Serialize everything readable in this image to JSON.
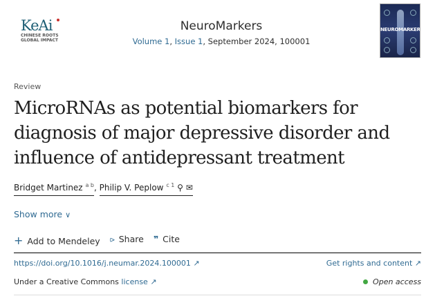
{
  "publisher_logo": {
    "name": "KeAi",
    "tagline_1": "CHINESE ROOTS",
    "tagline_2": "GLOBAL IMPACT"
  },
  "journal": {
    "title": "NeuroMarkers",
    "volume": "Volume 1",
    "issue": "Issue 1",
    "details": ", September 2024, 100001",
    "cover_text": "NEUROMARKERS"
  },
  "article": {
    "type": "Review",
    "title": "MicroRNAs as potential biomarkers for diagnosis of major depressive disorder and influence of antidepressant treatment"
  },
  "authors": [
    {
      "name": "Bridget Martinez",
      "sup": "a b"
    },
    {
      "name": "Philip V. Peplow",
      "sup": "c 1"
    }
  ],
  "show_more": "Show more",
  "actions": {
    "mendeley": "Add to Mendeley",
    "share": "Share",
    "cite": "Cite"
  },
  "doi": "https://doi.org/10.1016/j.neumar.2024.100001",
  "rights": "Get rights and content",
  "license_prefix": "Under a Creative Commons ",
  "license_link": "license",
  "open_access": "Open access",
  "colors": {
    "link": "#2f6a92",
    "open_access_dot": "#43a843"
  }
}
